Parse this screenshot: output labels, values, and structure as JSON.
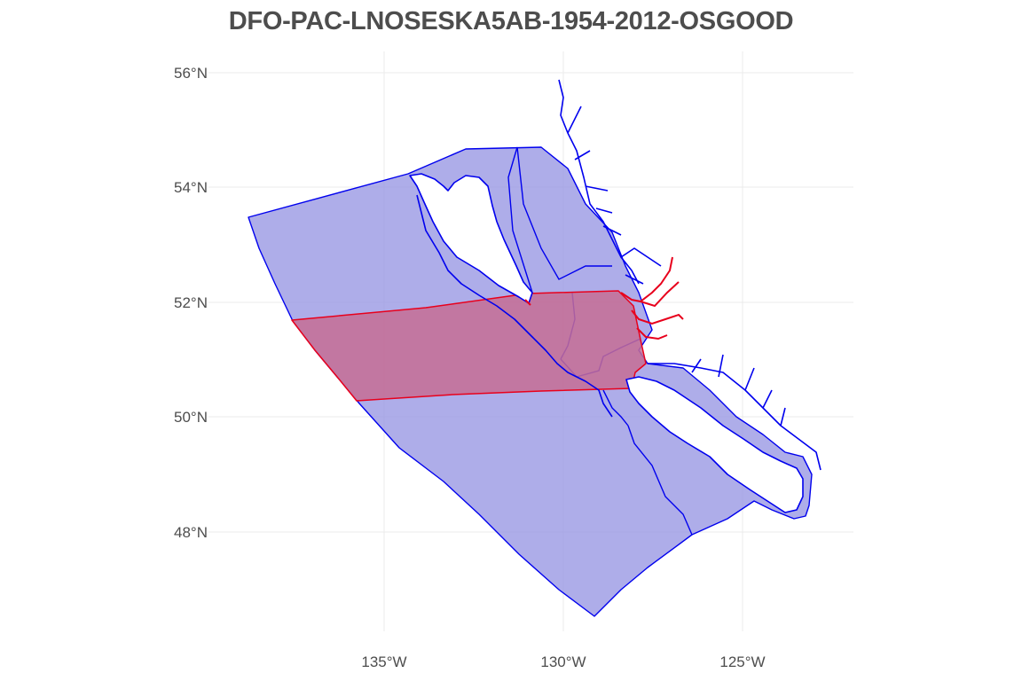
{
  "title": "DFO-PAC-LNOSESKA5AB-1954-2012-OSGOOD",
  "colors": {
    "region_fill": "#9a98e3",
    "region_stroke": "#0000ee",
    "highlight_fill": "#c66d94",
    "highlight_stroke": "#e8001c",
    "grid": "#ebebeb",
    "text": "#4d4d4d"
  },
  "axes": {
    "y_ticks": [
      {
        "value": 56,
        "label": "56°N"
      },
      {
        "value": 54,
        "label": "54°N"
      },
      {
        "value": 52,
        "label": "52°N"
      },
      {
        "value": 50,
        "label": "50°N"
      },
      {
        "value": 48,
        "label": "48°N"
      }
    ],
    "x_ticks": [
      {
        "value": -135,
        "label": "135°W"
      },
      {
        "value": -130,
        "label": "130°W"
      },
      {
        "value": -125,
        "label": "125°W"
      }
    ]
  },
  "layers": {
    "management_areas": "region-outline",
    "highlighted_area": "highlight-zone",
    "coastline": "coastline"
  }
}
